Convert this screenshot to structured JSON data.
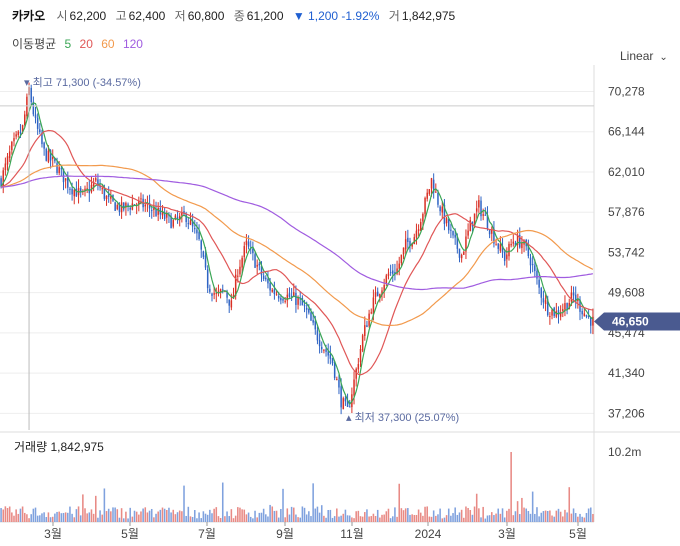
{
  "header": {
    "name": "카카오",
    "open_label": "시",
    "open": "62,200",
    "high_label": "고",
    "high": "62,400",
    "low_label": "저",
    "low": "60,800",
    "close_label": "종",
    "close": "61,200",
    "change": "▼ 1,200 -1.92%",
    "volume_label": "거",
    "volume": "1,842,975"
  },
  "moving_average": {
    "title": "이동평균",
    "periods": [
      "5",
      "20",
      "60",
      "120"
    ]
  },
  "scale_selector": {
    "label": "Linear"
  },
  "colors": {
    "up": "#d93025",
    "down": "#2f64c4",
    "ma5": "#3aa655",
    "ma20": "#e05757",
    "ma60": "#f29a4d",
    "ma120": "#a05ce0",
    "price_tag": "#4a5a90"
  },
  "chart_data": {
    "type": "candlestick",
    "x_ticks": [
      "3월",
      "5월",
      "7월",
      "9월",
      "11월",
      "2024",
      "3월",
      "5월"
    ],
    "y_ticks": [
      70278,
      66144,
      62010,
      57876,
      53742,
      49608,
      45474,
      41340,
      37206
    ],
    "y_tick_labels": [
      "70,278",
      "66,144",
      "62,010",
      "57,876",
      "53,742",
      "49,608",
      "45,474",
      "41,340",
      "37,206"
    ],
    "ylim": [
      35500,
      73000
    ],
    "last_price": "46,650",
    "annotations": {
      "high": "최고 71,300 (-34.57%)",
      "low": "최저 37,300 (25.07%)"
    },
    "price_path": [
      [
        0,
        61200
      ],
      [
        5,
        64500
      ],
      [
        10,
        66500
      ],
      [
        13,
        70500
      ],
      [
        16,
        67000
      ],
      [
        20,
        64000
      ],
      [
        26,
        62500
      ],
      [
        32,
        60500
      ],
      [
        38,
        59500
      ],
      [
        44,
        61000
      ],
      [
        50,
        59000
      ],
      [
        56,
        58200
      ],
      [
        62,
        58800
      ],
      [
        68,
        58500
      ],
      [
        74,
        57600
      ],
      [
        80,
        56800
      ],
      [
        86,
        57500
      ],
      [
        92,
        54800
      ],
      [
        96,
        50500
      ],
      [
        100,
        49300
      ],
      [
        104,
        49800
      ],
      [
        107,
        48300
      ],
      [
        110,
        52000
      ],
      [
        114,
        54500
      ],
      [
        118,
        52800
      ],
      [
        122,
        51000
      ],
      [
        126,
        49800
      ],
      [
        130,
        49400
      ],
      [
        134,
        49200
      ],
      [
        138,
        48800
      ],
      [
        142,
        47600
      ],
      [
        146,
        45500
      ],
      [
        150,
        44000
      ],
      [
        154,
        42500
      ],
      [
        158,
        38500
      ],
      [
        161,
        37400
      ],
      [
        164,
        40500
      ],
      [
        168,
        45000
      ],
      [
        172,
        48200
      ],
      [
        176,
        50000
      ],
      [
        180,
        51500
      ],
      [
        184,
        52000
      ],
      [
        188,
        54500
      ],
      [
        192,
        55500
      ],
      [
        196,
        58000
      ],
      [
        200,
        61200
      ],
      [
        203,
        59000
      ],
      [
        206,
        57200
      ],
      [
        210,
        55000
      ],
      [
        214,
        53500
      ],
      [
        218,
        56500
      ],
      [
        222,
        58500
      ],
      [
        226,
        56800
      ],
      [
        230,
        54800
      ],
      [
        234,
        53200
      ],
      [
        238,
        55000
      ],
      [
        242,
        54800
      ],
      [
        246,
        53000
      ],
      [
        250,
        50000
      ],
      [
        254,
        48000
      ],
      [
        258,
        47500
      ],
      [
        262,
        48300
      ],
      [
        266,
        49200
      ],
      [
        269,
        48200
      ],
      [
        272,
        47200
      ],
      [
        275,
        46650
      ]
    ],
    "volume_ticks": [
      "10.2m"
    ],
    "volume_max": 10200000,
    "series": [
      {
        "name": "5"
      },
      {
        "name": "20"
      },
      {
        "name": "60"
      },
      {
        "name": "120"
      }
    ]
  },
  "volume_panel": {
    "label": "거래량",
    "value": "1,842,975"
  }
}
